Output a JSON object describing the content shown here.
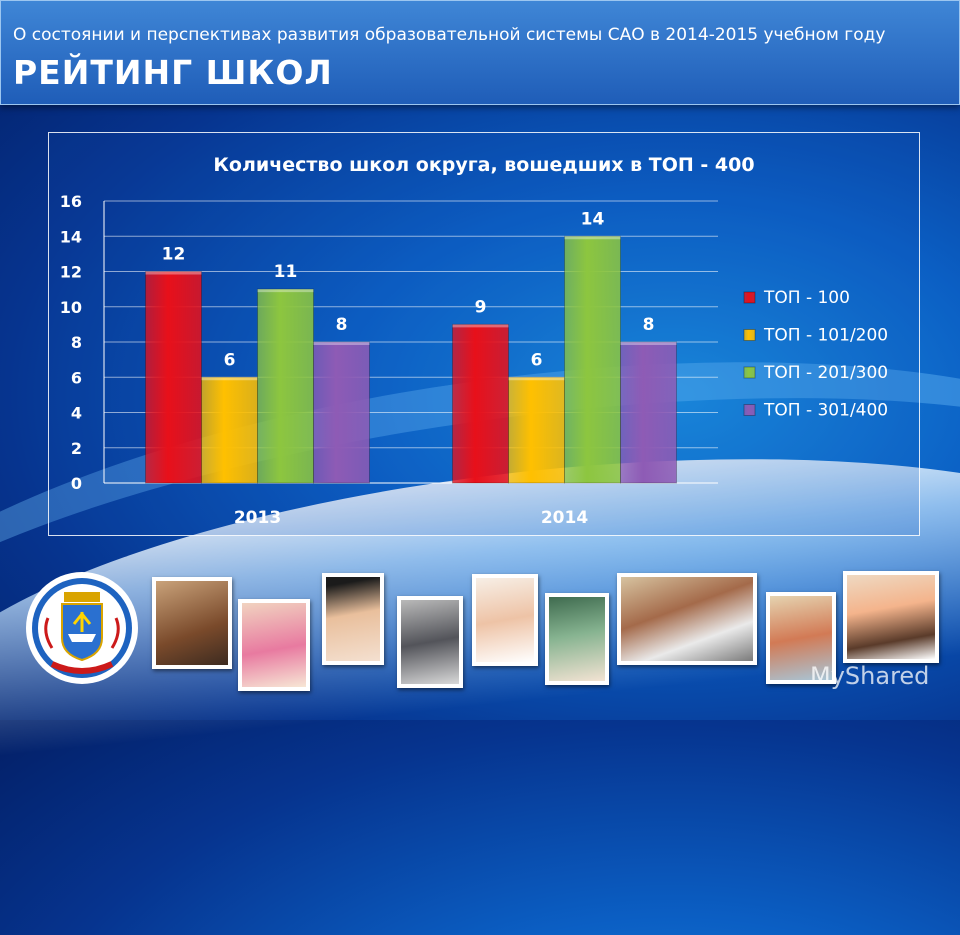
{
  "header": {
    "subtitle": "О состоянии и перспективах развития образовательной системы САО в 2014-2015 учебном году",
    "title": "РЕЙТИНГ ШКОЛ"
  },
  "chart_data": {
    "type": "bar",
    "title": "Количество школ округа, вошедших в ТОП - 400",
    "categories": [
      "2013",
      "2014"
    ],
    "series": [
      {
        "name": "ТОП - 100",
        "values": [
          12,
          9
        ],
        "color": "#e8101a"
      },
      {
        "name": "ТОП - 101/200",
        "values": [
          6,
          6
        ],
        "color": "#ffc000"
      },
      {
        "name": "ТОП - 201/300",
        "values": [
          11,
          14
        ],
        "color": "#8dc63f"
      },
      {
        "name": "ТОП - 301/400",
        "values": [
          8,
          8
        ],
        "color": "#8e5bb5"
      }
    ],
    "ylim": [
      0,
      16
    ],
    "yticks": [
      0,
      2,
      4,
      6,
      8,
      10,
      12,
      14,
      16
    ],
    "grid": true,
    "legend_position": "right",
    "data_labels": true
  },
  "watermark": "MyShared",
  "colors": {
    "background": "#0b5fc4",
    "header": "#2a6cc6"
  },
  "icons": {
    "logo": "district-coat-of-arms"
  }
}
